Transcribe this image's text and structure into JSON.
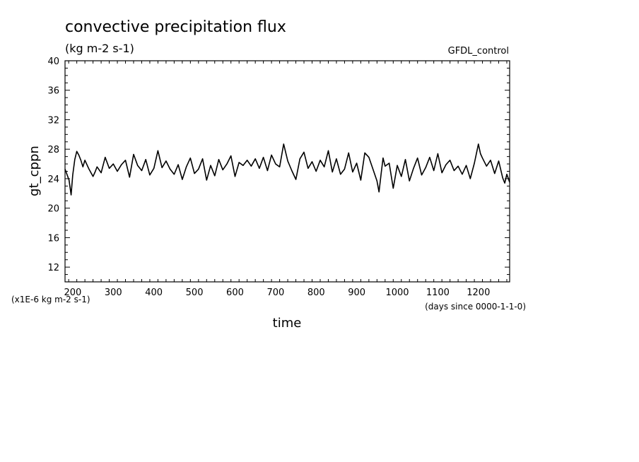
{
  "chart_data": {
    "type": "line",
    "title": "convective precipitation flux",
    "units": "(kg m-2 s-1)",
    "dataset": "GFDL_control",
    "ylabel": "gt_cppn",
    "xlabel": "time",
    "y_scale_note": "(x1E-6 kg m-2 s-1)",
    "x_units_note": "(days since 0000-1-1-0)",
    "xlim": [
      181,
      1277
    ],
    "ylim": [
      10,
      40
    ],
    "x_ticks": [
      200,
      300,
      400,
      500,
      600,
      700,
      800,
      900,
      1000,
      1100,
      1200
    ],
    "y_ticks": [
      12,
      16,
      20,
      24,
      28,
      32,
      36,
      40
    ],
    "grid": false,
    "series": [
      {
        "x": [
          181,
          191,
          196,
          200,
          205,
          210,
          215,
          220,
          225,
          230,
          240,
          250,
          255,
          260,
          270,
          280,
          290,
          300,
          310,
          320,
          330,
          340,
          350,
          360,
          370,
          380,
          390,
          400,
          410,
          420,
          430,
          440,
          450,
          460,
          470,
          480,
          490,
          500,
          510,
          520,
          530,
          540,
          550,
          560,
          570,
          580,
          590,
          600,
          610,
          620,
          630,
          640,
          650,
          660,
          670,
          680,
          690,
          700,
          710,
          720,
          730,
          740,
          750,
          760,
          770,
          780,
          790,
          800,
          810,
          820,
          830,
          840,
          850,
          860,
          870,
          880,
          890,
          900,
          910,
          920,
          930,
          940,
          950,
          955,
          960,
          965,
          970,
          980,
          990,
          1000,
          1010,
          1020,
          1030,
          1040,
          1050,
          1060,
          1070,
          1080,
          1090,
          1100,
          1110,
          1120,
          1130,
          1140,
          1150,
          1160,
          1170,
          1180,
          1190,
          1200,
          1205,
          1210,
          1220,
          1230,
          1240,
          1250,
          1260,
          1265,
          1270,
          1277
        ],
        "y": [
          25.3,
          23.8,
          21.8,
          24.5,
          26.6,
          27.7,
          27.2,
          26.5,
          25.6,
          26.5,
          25.3,
          24.3,
          24.9,
          25.6,
          24.8,
          26.9,
          25.4,
          26.0,
          25.0,
          25.9,
          26.5,
          24.2,
          27.3,
          25.8,
          25.1,
          26.6,
          24.5,
          25.4,
          27.8,
          25.5,
          26.4,
          25.3,
          24.6,
          25.9,
          23.9,
          25.6,
          26.8,
          24.7,
          25.3,
          26.7,
          23.8,
          25.8,
          24.4,
          26.6,
          25.2,
          26.0,
          27.1,
          24.3,
          26.2,
          25.8,
          26.5,
          25.7,
          26.7,
          25.4,
          26.9,
          25.1,
          27.2,
          26.0,
          25.6,
          28.7,
          26.4,
          25.1,
          23.9,
          26.7,
          27.6,
          25.4,
          26.3,
          25.0,
          26.5,
          25.6,
          27.8,
          24.9,
          26.7,
          24.6,
          25.3,
          27.5,
          24.9,
          26.1,
          23.8,
          27.5,
          26.9,
          25.3,
          23.7,
          22.2,
          24.6,
          26.8,
          25.7,
          26.1,
          22.7,
          25.8,
          24.3,
          26.6,
          23.7,
          25.4,
          26.8,
          24.5,
          25.5,
          26.9,
          25.1,
          27.4,
          24.8,
          25.9,
          26.5,
          25.1,
          25.7,
          24.6,
          25.8,
          24.0,
          26.1,
          28.7,
          27.4,
          26.8,
          25.7,
          26.5,
          24.7,
          26.4,
          24.1,
          23.4,
          24.6,
          23.5
        ]
      }
    ]
  }
}
